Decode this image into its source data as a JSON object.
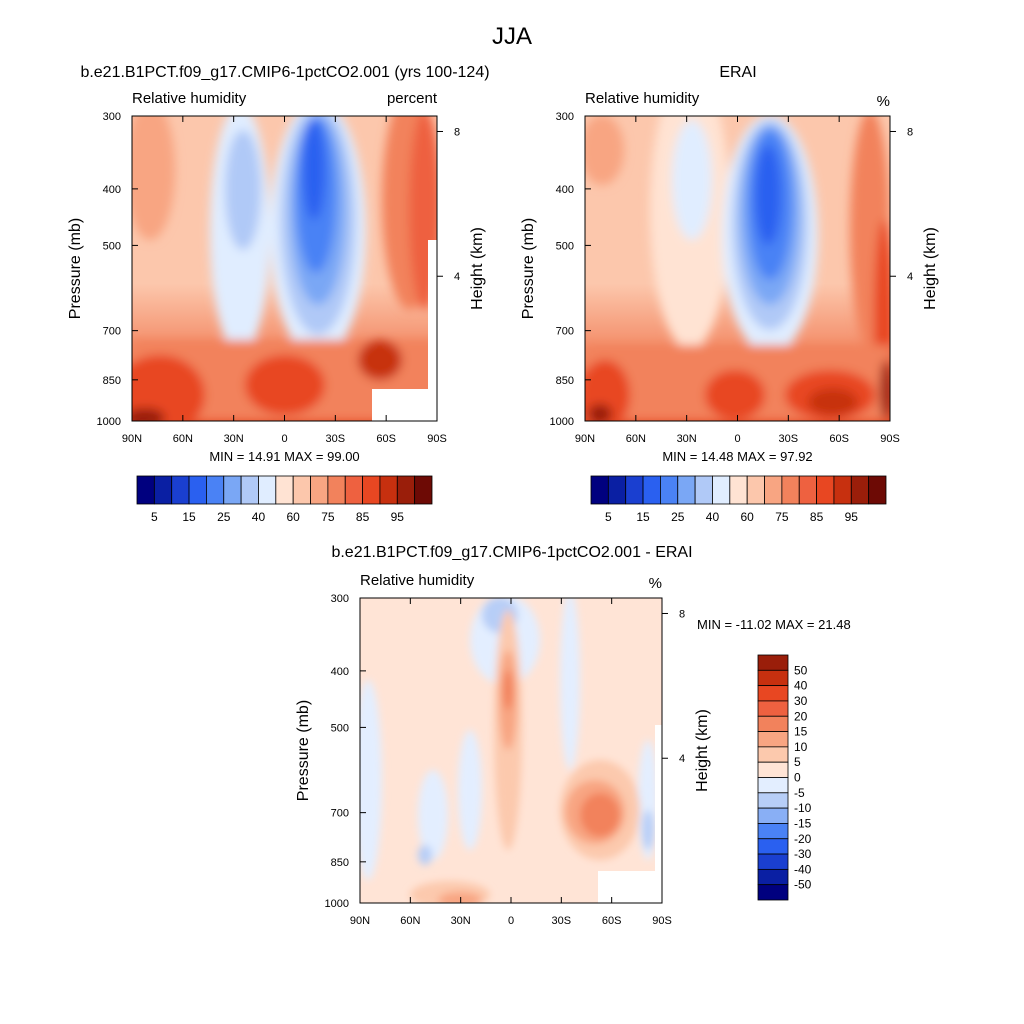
{
  "page_title": "JJA",
  "colors": {
    "abs": [
      "#00007f",
      "#0a1fa3",
      "#1a3fd0",
      "#2a60f0",
      "#4a82f5",
      "#7aa7f5",
      "#b0c9f7",
      "#e0edff",
      "#ffe3d3",
      "#fcc7ac",
      "#f8a582",
      "#f2825c",
      "#ee6140",
      "#e84722",
      "#c7300f",
      "#9a1e0a",
      "#6d0a05"
    ],
    "diff": [
      "#00007f",
      "#0a1fa3",
      "#1a3fd0",
      "#2a60f0",
      "#4a82f5",
      "#89aff5",
      "#b7cef7",
      "#e3eeff",
      "#ffe4d6",
      "#fcc9ad",
      "#f8a582",
      "#f2825c",
      "#ee6140",
      "#e84722",
      "#c7300f",
      "#9a1e0a"
    ]
  },
  "chart_data": [
    {
      "type": "heatmap",
      "panel": "model",
      "title": "b.e21.B1PCT.f09_g17.CMIP6-1pctCO2.001 (yrs 100-124)",
      "left_label": "Relative humidity",
      "units_label": "percent",
      "xlabel": "",
      "ylabel": "Pressure (mb)",
      "ylabel_right": "Height (km)",
      "x_ticks": [
        "90N",
        "60N",
        "30N",
        "0",
        "30S",
        "60S",
        "90S"
      ],
      "y_ticks": [
        "300",
        "400",
        "500",
        "700",
        "850",
        "1000"
      ],
      "y_ticks_right": [
        "8",
        "4"
      ],
      "xlim": [
        90,
        -90
      ],
      "ylim": [
        1000,
        300
      ],
      "min_max_text": "MIN =  14.91  MAX =  99.00",
      "min": 14.91,
      "max": 99.0,
      "colorbar_labels": [
        "5",
        "15",
        "25",
        "40",
        "60",
        "75",
        "85",
        "95"
      ],
      "colorbar_orientation": "horizontal"
    },
    {
      "type": "heatmap",
      "panel": "obs",
      "title": "ERAI",
      "left_label": "Relative humidity",
      "units_label": "%",
      "xlabel": "",
      "ylabel": "Pressure (mb)",
      "ylabel_right": "Height (km)",
      "x_ticks": [
        "90N",
        "60N",
        "30N",
        "0",
        "30S",
        "60S",
        "90S"
      ],
      "y_ticks": [
        "300",
        "400",
        "500",
        "700",
        "850",
        "1000"
      ],
      "y_ticks_right": [
        "8",
        "4"
      ],
      "xlim": [
        90,
        -90
      ],
      "ylim": [
        1000,
        300
      ],
      "min_max_text": "MIN =  14.48  MAX =  97.92",
      "min": 14.48,
      "max": 97.92,
      "colorbar_labels": [
        "5",
        "15",
        "25",
        "40",
        "60",
        "75",
        "85",
        "95"
      ],
      "colorbar_orientation": "horizontal"
    },
    {
      "type": "heatmap",
      "panel": "difference",
      "title": "b.e21.B1PCT.f09_g17.CMIP6-1pctCO2.001 - ERAI",
      "left_label": "Relative humidity",
      "units_label": "%",
      "xlabel": "",
      "ylabel": "Pressure (mb)",
      "ylabel_right": "Height (km)",
      "x_ticks": [
        "90N",
        "60N",
        "30N",
        "0",
        "30S",
        "60S",
        "90S"
      ],
      "y_ticks": [
        "300",
        "400",
        "500",
        "700",
        "850",
        "1000"
      ],
      "y_ticks_right": [
        "8",
        "4"
      ],
      "xlim": [
        90,
        -90
      ],
      "ylim": [
        1000,
        300
      ],
      "min_max_text": "MIN = -11.02  MAX =  21.48",
      "min": -11.02,
      "max": 21.48,
      "colorbar_labels": [
        "50",
        "40",
        "30",
        "20",
        "15",
        "10",
        "5",
        "0",
        "-5",
        "-10",
        "-15",
        "-20",
        "-30",
        "-40",
        "-50"
      ],
      "colorbar_orientation": "vertical"
    }
  ]
}
